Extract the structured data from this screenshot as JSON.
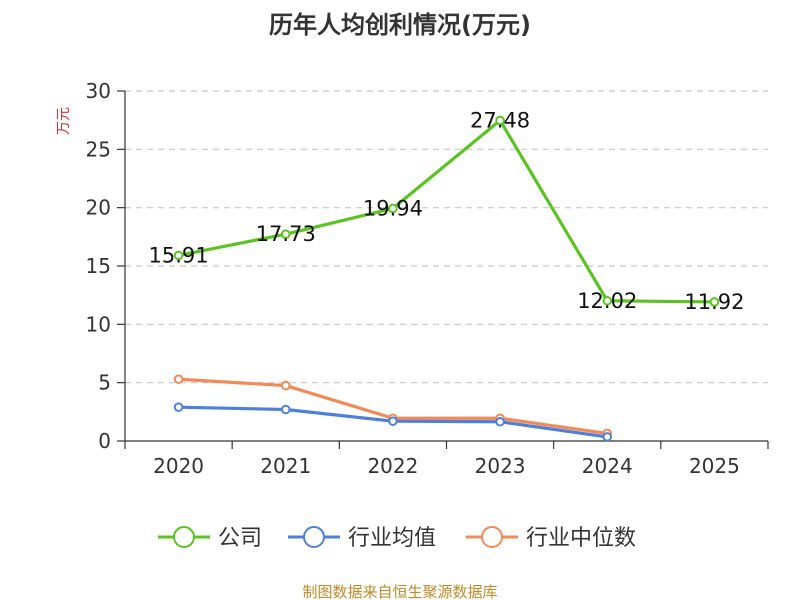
{
  "chart_data": {
    "type": "line",
    "title": "历年人均创利情况(万元)",
    "ylabel": "万元",
    "xlabel": "",
    "categories": [
      "2020",
      "2021",
      "2022",
      "2023",
      "2024",
      "2025"
    ],
    "ylim": [
      0,
      30
    ],
    "yticks": [
      "0",
      "5",
      "10",
      "15",
      "20",
      "25",
      "30"
    ],
    "grid": true,
    "legend_position": "bottom",
    "series": [
      {
        "name": "公司",
        "color": "#5cc223",
        "values": [
          15.91,
          17.73,
          19.94,
          27.48,
          12.02,
          11.92
        ],
        "labels": [
          "15.91",
          "17.73",
          "19.94",
          "27.48",
          "12.02",
          "11.92"
        ]
      },
      {
        "name": "行业均值",
        "color": "#4f7fd9",
        "values": [
          2.9,
          2.7,
          1.7,
          1.65,
          0.35,
          null
        ]
      },
      {
        "name": "行业中位数",
        "color": "#f08b59",
        "values": [
          5.3,
          4.75,
          1.95,
          1.95,
          0.65,
          null
        ]
      }
    ]
  },
  "source": {
    "text": "制图数据来自恒生聚源数据库",
    "color": "#c08a2a"
  },
  "colors": {
    "ylabel": "#e03030",
    "axis": "#333333",
    "grid": "#c8c8c8"
  }
}
